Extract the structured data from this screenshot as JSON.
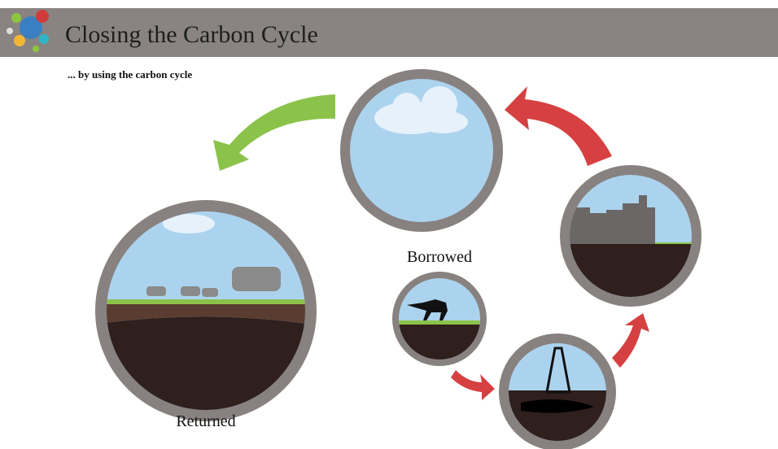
{
  "header": {
    "title": "Closing the Carbon Cycle",
    "subtitle": "... by using the carbon cycle"
  },
  "labels": {
    "borrowed": "Borrowed",
    "returned": "Returned"
  }
}
